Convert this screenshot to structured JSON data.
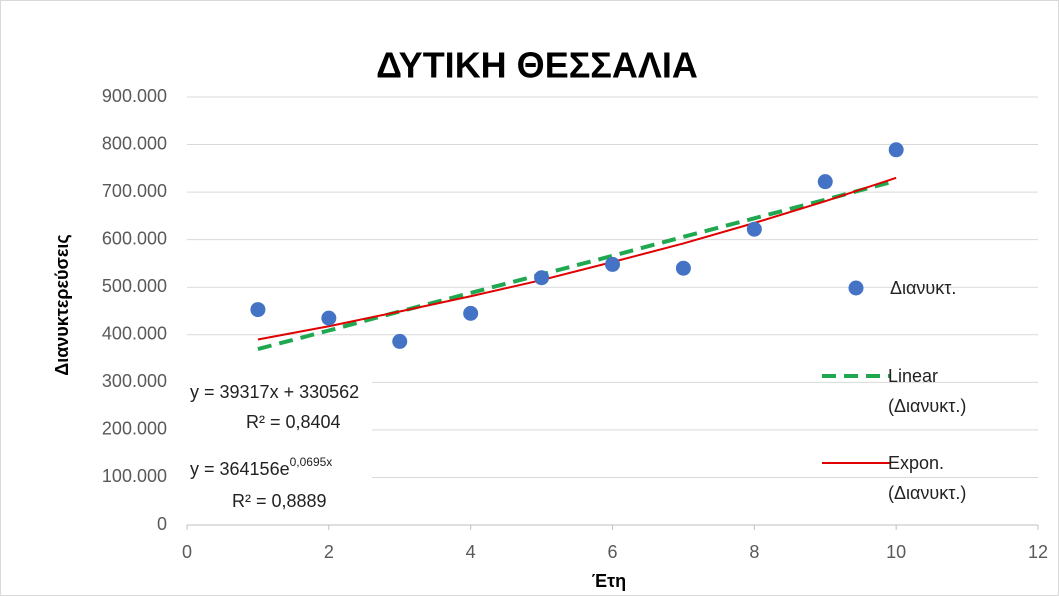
{
  "chart_data": {
    "type": "scatter",
    "title": "ΔΥΤΙΚΗ ΘΕΣΣΑΛΙΑ",
    "x_label": "Έτη",
    "y_label": "Διανυκτερεύσεις",
    "xlim": [
      0,
      12
    ],
    "xticks": [
      0,
      2,
      4,
      6,
      8,
      10,
      12
    ],
    "ylim": [
      0,
      900000
    ],
    "yticks": [
      0,
      {
        "value": 100000,
        "label": "100.000"
      },
      {
        "value": 200000,
        "label": "200.000"
      },
      {
        "value": 300000,
        "label": "300.000"
      },
      {
        "value": 400000,
        "label": "400.000"
      },
      {
        "value": 500000,
        "label": "500.000"
      },
      {
        "value": 600000,
        "label": "600.000"
      },
      {
        "value": 700000,
        "label": "700.000"
      },
      {
        "value": 800000,
        "label": "800.000"
      },
      {
        "value": 900000,
        "label": "900.000"
      }
    ],
    "grid": true,
    "legend": "right",
    "series": [
      {
        "name": "Διανυκτ.",
        "color": "#4472c4",
        "style": "markers",
        "x": [
          1,
          2,
          3,
          4,
          5,
          6,
          7,
          8,
          9,
          10
        ],
        "values": [
          453000,
          435000,
          386000,
          445000,
          520000,
          548000,
          540000,
          622000,
          722000,
          789000
        ]
      },
      {
        "name": "Linear (Διανυκτ.)",
        "color": "#1fa84f",
        "style": "dashed",
        "x": [
          1,
          2,
          3,
          4,
          5,
          6,
          7,
          8,
          9,
          10
        ],
        "values": [
          370000,
          409000,
          449000,
          488000,
          527000,
          566000,
          606000,
          645000,
          684000,
          724000
        ]
      },
      {
        "name": "Expon. (Διανυκτ.)",
        "color": "#e00000",
        "style": "solid",
        "x": [
          1,
          2,
          3,
          4,
          5,
          6,
          7,
          8,
          9,
          10
        ],
        "values": [
          390000,
          418000,
          449000,
          481000,
          515000,
          553000,
          592000,
          635000,
          681000,
          730000
        ]
      }
    ],
    "annotations": [
      "y = 39317x + 330562",
      "R² = 0,8404",
      {
        "text": "y = 364156e",
        "sup": "0,0695x"
      },
      "R² = 0,8889"
    ]
  }
}
